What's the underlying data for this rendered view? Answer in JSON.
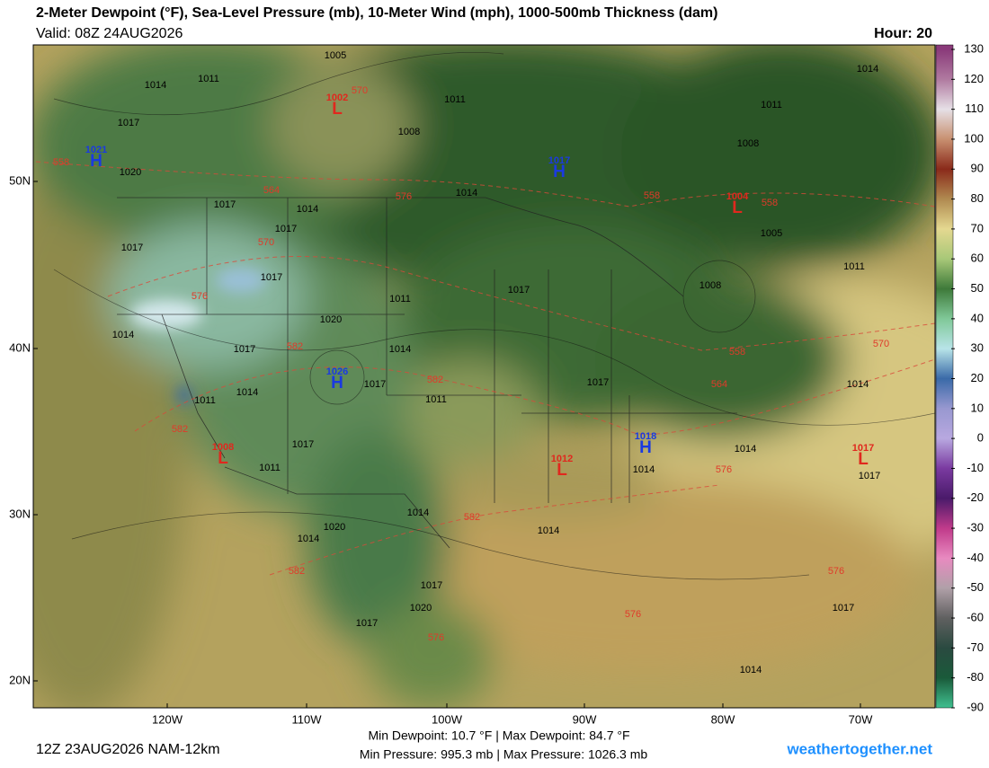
{
  "header": {
    "title": "2-Meter Dewpoint (°F), Sea-Level Pressure (mb), 10-Meter Wind (mph), 1000-500mb Thickness (dam)",
    "valid": "Valid: 08Z 24AUG2026",
    "hour": "Hour: 20"
  },
  "colorbar": {
    "ticks": [
      130,
      120,
      110,
      100,
      90,
      80,
      70,
      60,
      50,
      40,
      30,
      20,
      10,
      0,
      -10,
      -20,
      -30,
      -40,
      -50,
      -60,
      -70,
      -80,
      -90
    ],
    "colors": [
      "#8a3a7a",
      "#b07aa0",
      "#e6e0e6",
      "#c89070",
      "#8a2a1a",
      "#b08a50",
      "#e4d890",
      "#a8c878",
      "#3e7a3a",
      "#80c898",
      "#b8e4e8",
      "#3a6aa8",
      "#9898d0",
      "#b8a8e0",
      "#7a3aa0",
      "#4a1a6a",
      "#c03a8a",
      "#e88ac0",
      "#b0a0a8",
      "#606060",
      "#2a4a40",
      "#1a5a3a",
      "#40c090"
    ]
  },
  "lat_labels": [
    "50N",
    "40N",
    "30N",
    "20N"
  ],
  "lon_labels": [
    "120W",
    "110W",
    "100W",
    "90W",
    "80W",
    "70W"
  ],
  "pressure_centers": [
    {
      "letter": "H",
      "value": 1021
    },
    {
      "letter": "L",
      "value": 1002
    },
    {
      "letter": "H",
      "value": 1017
    },
    {
      "letter": "L",
      "value": 1004
    },
    {
      "letter": "H",
      "value": 1026
    },
    {
      "letter": "L",
      "value": 1008
    },
    {
      "letter": "L",
      "value": 1012
    },
    {
      "letter": "H",
      "value": 1018
    },
    {
      "letter": "L",
      "value": 1017
    }
  ],
  "isobar_labels": [
    1005,
    1011,
    1014,
    1017,
    1020,
    1011,
    1008,
    1014,
    1014,
    1011,
    1008,
    1005,
    1011,
    1008,
    1017,
    1014,
    1017,
    1017,
    1017,
    1011,
    1017,
    1020,
    1014,
    1014,
    1017,
    1017,
    1011,
    1017,
    1014,
    1011,
    1014,
    1017,
    1011,
    1014,
    1014,
    1017,
    1020,
    1014,
    1014,
    1014,
    1017,
    1020,
    1017,
    1017,
    1014
  ],
  "thickness_labels": [
    558,
    564,
    576,
    570,
    576,
    582,
    582,
    582,
    558,
    558,
    558,
    564,
    570,
    576,
    582,
    582,
    576,
    576,
    576,
    570
  ],
  "footer": {
    "run": "12Z 23AUG2026 NAM-12km",
    "stats_1": "Min Dewpoint:  10.7 °F | Max Dewpoint:  84.7 °F",
    "stats_2": "Min Pressure: 995.3 mb | Max Pressure: 1026.3 mb",
    "site": "weathertogether.net"
  }
}
